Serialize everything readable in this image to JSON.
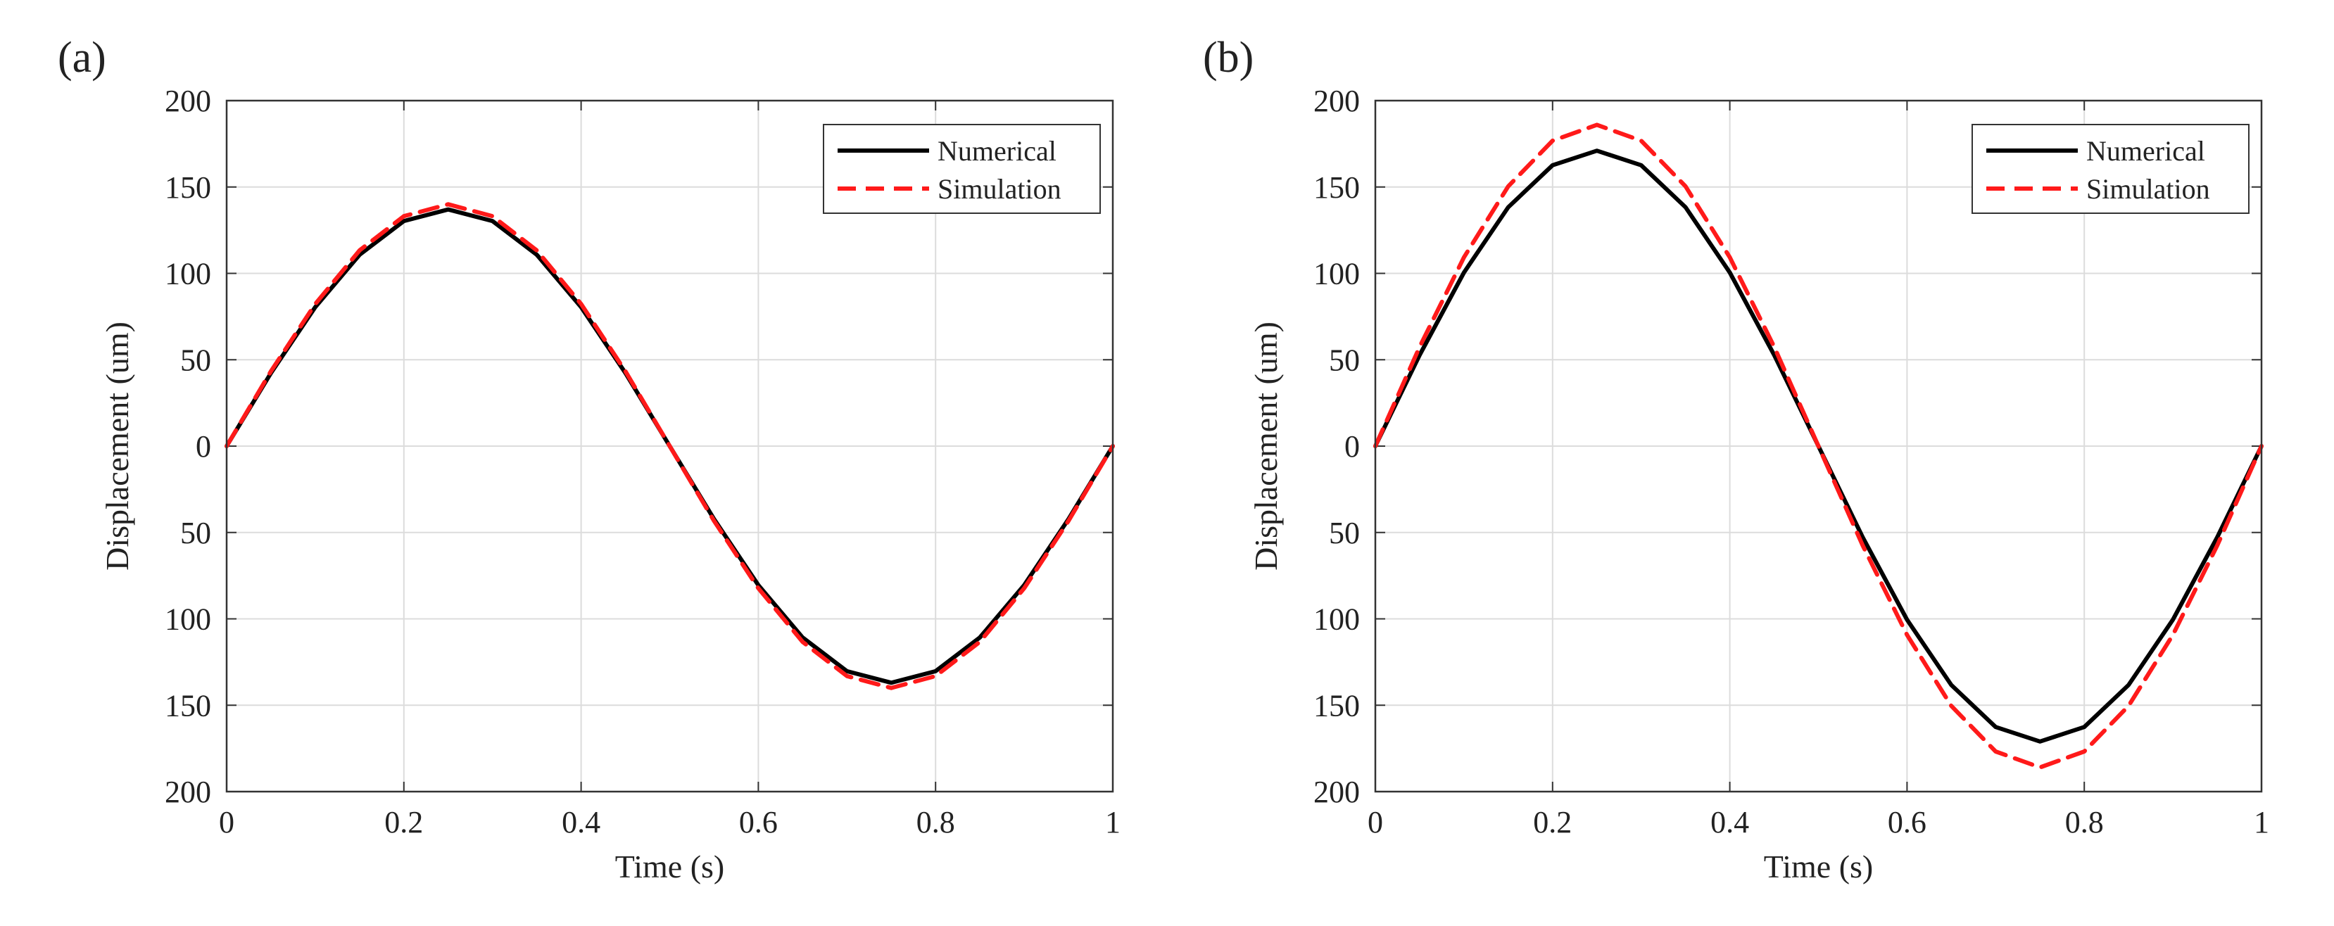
{
  "colors": {
    "numerical": "#000000",
    "simulation": "#ff1a1a",
    "grid": "#dcdcdc",
    "axis": "#333333"
  },
  "chart_data": [
    {
      "type": "line",
      "panel_label": "(a)",
      "xlabel": "Time (s)",
      "ylabel": "Displacement (um)",
      "xlim": [
        0,
        1
      ],
      "ylim": [
        -200,
        200
      ],
      "grid": true,
      "legend_position": "top-right",
      "xticks": [
        0,
        0.2,
        0.4,
        0.6,
        0.8,
        1
      ],
      "xtick_labels": [
        "0",
        "0.2",
        "0.4",
        "0.6",
        "0.8",
        "1"
      ],
      "yticks": [
        200,
        150,
        100,
        50,
        0,
        -50,
        -100,
        -150,
        -200
      ],
      "ytick_labels": [
        "200",
        "150",
        "100",
        "50",
        "0",
        "50",
        "100",
        "150",
        "200"
      ],
      "series": [
        {
          "name": "Numerical",
          "style": "solid",
          "color_key": "numerical",
          "x": [
            0,
            0.05,
            0.1,
            0.15,
            0.2,
            0.25,
            0.3,
            0.35,
            0.4,
            0.45,
            0.5,
            0.55,
            0.6,
            0.65,
            0.7,
            0.75,
            0.8,
            0.85,
            0.9,
            0.95,
            1
          ],
          "y": [
            0,
            42.3,
            80.5,
            110.8,
            130.3,
            137,
            130.3,
            110.8,
            80.5,
            42.3,
            0,
            -42.3,
            -80.5,
            -110.8,
            -130.3,
            -137,
            -130.3,
            -110.8,
            -80.5,
            -42.3,
            0
          ]
        },
        {
          "name": "Simulation",
          "style": "dashed",
          "color_key": "simulation",
          "x": [
            0,
            0.05,
            0.1,
            0.15,
            0.2,
            0.25,
            0.3,
            0.35,
            0.4,
            0.45,
            0.5,
            0.55,
            0.6,
            0.65,
            0.7,
            0.75,
            0.8,
            0.85,
            0.9,
            0.95,
            1
          ],
          "y": [
            0,
            43.3,
            82.3,
            113.3,
            133.1,
            140,
            133.1,
            113.3,
            82.3,
            43.3,
            0,
            -43.3,
            -82.3,
            -113.3,
            -133.1,
            -140,
            -133.1,
            -113.3,
            -82.3,
            -43.3,
            0
          ]
        }
      ]
    },
    {
      "type": "line",
      "panel_label": "(b)",
      "xlabel": "Time (s)",
      "ylabel": "Displacement (um)",
      "xlim": [
        0,
        1
      ],
      "ylim": [
        -200,
        200
      ],
      "grid": true,
      "legend_position": "top-right",
      "xticks": [
        0,
        0.2,
        0.4,
        0.6,
        0.8,
        1
      ],
      "xtick_labels": [
        "0",
        "0.2",
        "0.4",
        "0.6",
        "0.8",
        "1"
      ],
      "yticks": [
        200,
        150,
        100,
        50,
        0,
        -50,
        -100,
        -150,
        -200
      ],
      "ytick_labels": [
        "200",
        "150",
        "100",
        "50",
        "0",
        "50",
        "100",
        "150",
        "200"
      ],
      "series": [
        {
          "name": "Numerical",
          "style": "solid",
          "color_key": "numerical",
          "x": [
            0,
            0.05,
            0.1,
            0.15,
            0.2,
            0.25,
            0.3,
            0.35,
            0.4,
            0.45,
            0.5,
            0.55,
            0.6,
            0.65,
            0.7,
            0.75,
            0.8,
            0.85,
            0.9,
            0.95,
            1
          ],
          "y": [
            0,
            52.8,
            100.5,
            138.3,
            162.6,
            171,
            162.6,
            138.3,
            100.5,
            52.8,
            0,
            -52.8,
            -100.5,
            -138.3,
            -162.6,
            -171,
            -162.6,
            -138.3,
            -100.5,
            -52.8,
            0
          ]
        },
        {
          "name": "Simulation",
          "style": "dashed",
          "color_key": "simulation",
          "x": [
            0,
            0.05,
            0.1,
            0.15,
            0.2,
            0.25,
            0.3,
            0.35,
            0.4,
            0.45,
            0.5,
            0.55,
            0.6,
            0.65,
            0.7,
            0.75,
            0.8,
            0.85,
            0.9,
            0.95,
            1
          ],
          "y": [
            0,
            57.5,
            109.3,
            150.4,
            176.8,
            186,
            176.8,
            150.4,
            109.3,
            57.5,
            0,
            -57.5,
            -109.3,
            -150.4,
            -176.8,
            -186,
            -176.8,
            -150.4,
            -109.3,
            -57.5,
            0
          ]
        }
      ]
    }
  ]
}
